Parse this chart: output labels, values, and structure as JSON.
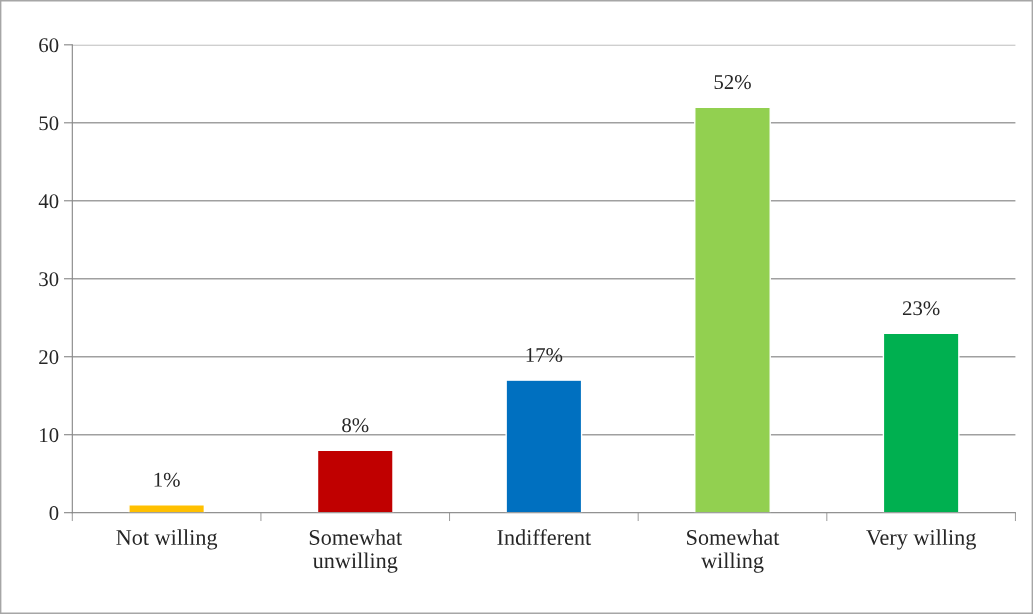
{
  "chart_data": {
    "type": "bar",
    "categories": [
      "Not willing",
      "Somewhat\nunwilling",
      "Indifferent",
      "Somewhat\nwilling",
      "Very willing"
    ],
    "values": [
      1,
      8,
      17,
      52,
      23
    ],
    "value_labels": [
      "1%",
      "8%",
      "17%",
      "52%",
      "23%"
    ],
    "colors": [
      "#ffc000",
      "#c00000",
      "#0070c0",
      "#92d050",
      "#00b050"
    ],
    "ylim": [
      0,
      60
    ],
    "yticks": [
      0,
      10,
      20,
      30,
      40,
      50,
      60
    ],
    "grid": "y",
    "legend": false
  }
}
